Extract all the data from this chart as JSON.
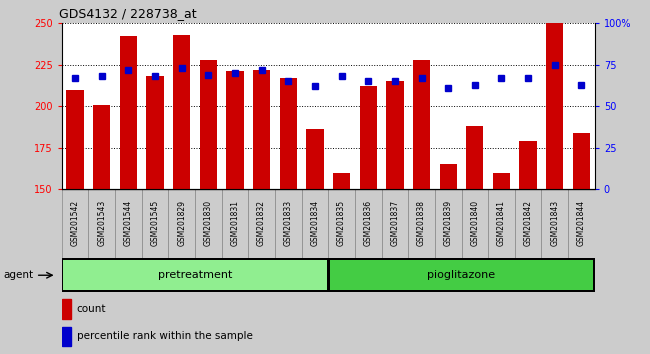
{
  "title": "GDS4132 / 228738_at",
  "categories": [
    "GSM201542",
    "GSM201543",
    "GSM201544",
    "GSM201545",
    "GSM201829",
    "GSM201830",
    "GSM201831",
    "GSM201832",
    "GSM201833",
    "GSM201834",
    "GSM201835",
    "GSM201836",
    "GSM201837",
    "GSM201838",
    "GSM201839",
    "GSM201840",
    "GSM201841",
    "GSM201842",
    "GSM201843",
    "GSM201844"
  ],
  "counts": [
    210,
    201,
    242,
    218,
    243,
    228,
    221,
    222,
    217,
    186,
    160,
    212,
    215,
    228,
    165,
    188,
    160,
    179,
    250,
    184
  ],
  "percentiles": [
    67,
    68,
    72,
    68,
    73,
    69,
    70,
    72,
    65,
    62,
    68,
    65,
    65,
    67,
    61,
    63,
    67,
    67,
    75,
    63
  ],
  "ylim_left": [
    150,
    250
  ],
  "ylim_right": [
    0,
    100
  ],
  "yticks_left": [
    150,
    175,
    200,
    225,
    250
  ],
  "yticks_right": [
    0,
    25,
    50,
    75,
    100
  ],
  "bar_color": "#cc0000",
  "dot_color": "#0000cc",
  "pretreatment_color": "#90ee90",
  "pioglitazone_color": "#44cc44",
  "pretreatment_label": "pretreatment",
  "pioglitazone_label": "pioglitazone",
  "agent_label": "agent",
  "n_pretreatment": 10,
  "n_pioglitazone": 10,
  "legend_count_label": "count",
  "legend_percentile_label": "percentile rank within the sample",
  "bg_color": "#cccccc",
  "plot_bg_color": "#ffffff",
  "ticklabel_bg": "#cccccc"
}
